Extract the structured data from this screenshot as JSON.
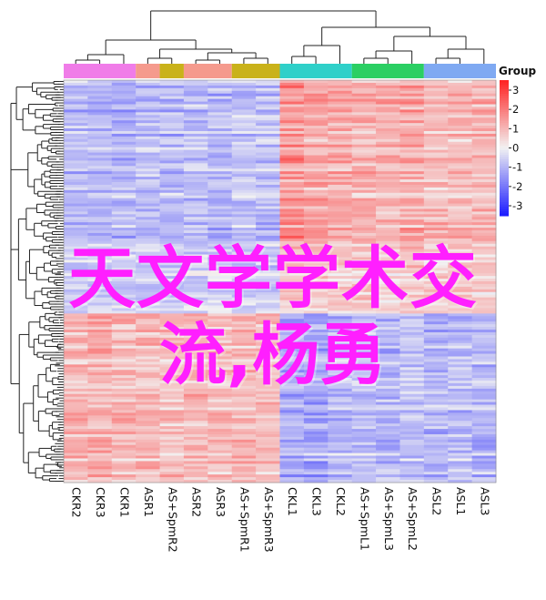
{
  "chart_data": {
    "type": "heatmap",
    "columns": [
      "CKR2",
      "CKR3",
      "CKR1",
      "ASR1",
      "AS+SpmR2",
      "ASR2",
      "ASR3",
      "AS+SpmR1",
      "AS+SpmR3",
      "CKL1",
      "CKL3",
      "CKL2",
      "AS+SpmL1",
      "AS+SpmL3",
      "AS+SpmL2",
      "ASL2",
      "ASL1",
      "ASL3"
    ],
    "group_legend_title": "Group",
    "groups": [
      {
        "color": "#f07ce8",
        "columns": [
          "CKR2",
          "CKR3",
          "CKR1"
        ]
      },
      {
        "color": "#f59a8d",
        "columns": [
          "ASR1"
        ]
      },
      {
        "color": "#c9b21a",
        "columns": [
          "AS+SpmR2"
        ]
      },
      {
        "color": "#f59a8d",
        "columns": [
          "ASR2",
          "ASR3"
        ]
      },
      {
        "color": "#c9b21a",
        "columns": [
          "AS+SpmR1",
          "AS+SpmR3"
        ]
      },
      {
        "color": "#2fd0c9",
        "columns": [
          "CKL1",
          "CKL3",
          "CKL2"
        ]
      },
      {
        "color": "#2bcf63",
        "columns": [
          "AS+SpmL1",
          "AS+SpmL3",
          "AS+SpmL2"
        ]
      },
      {
        "color": "#7fa9f2",
        "columns": [
          "ASL2",
          "ASL1",
          "ASL3"
        ]
      }
    ],
    "color_scale": {
      "min": -3,
      "max": 3,
      "ticks": [
        "3",
        "2",
        "1",
        "0",
        "-1",
        "-2",
        "-3"
      ],
      "low_color": "#1a1aff",
      "mid_color": "#f2f2f2",
      "high_color": "#ff2020"
    },
    "row_blocks": [
      {
        "share": 0.42,
        "values": [
          -0.8,
          -0.8,
          -0.9,
          -0.7,
          -0.8,
          -0.7,
          -0.8,
          -0.7,
          -0.7,
          1.3,
          1.1,
          1.0,
          0.9,
          0.9,
          1.0,
          0.8,
          0.8,
          0.9
        ]
      },
      {
        "share": 0.16,
        "values": [
          -0.4,
          -0.5,
          -0.4,
          -0.5,
          -0.5,
          -0.4,
          -0.4,
          -0.5,
          -0.5,
          0.6,
          0.5,
          0.5,
          0.5,
          0.4,
          0.6,
          0.4,
          0.5,
          0.4
        ]
      },
      {
        "share": 0.42,
        "values": [
          0.8,
          0.9,
          0.8,
          0.8,
          0.7,
          0.8,
          0.7,
          0.8,
          0.7,
          -0.9,
          -1.0,
          -0.8,
          -0.7,
          -0.8,
          -0.6,
          -0.8,
          -0.7,
          -0.8
        ]
      }
    ],
    "grid": false
  },
  "overlay": {
    "line1": "天文学学术交",
    "line2": "流,杨勇"
  }
}
